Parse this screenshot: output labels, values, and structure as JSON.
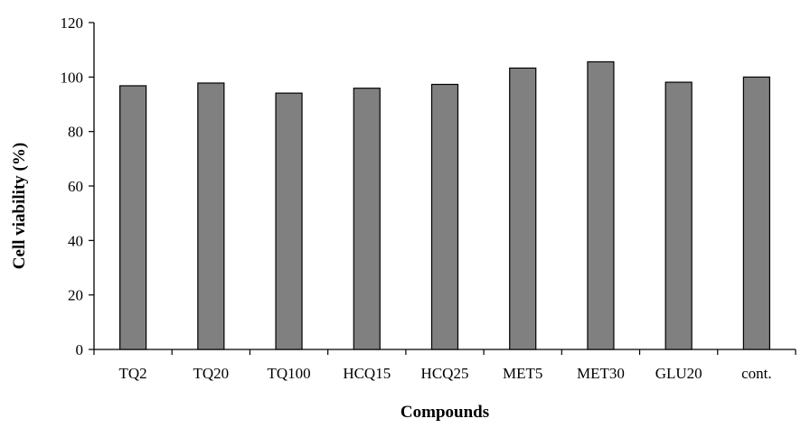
{
  "chart_data": {
    "type": "bar",
    "title": "",
    "xlabel": "Compounds",
    "ylabel": "Cell viability (%)",
    "categories": [
      "TQ2",
      "TQ20",
      "TQ100",
      "HCQ15",
      "HCQ25",
      "MET5",
      "MET30",
      "GLU20",
      "cont."
    ],
    "values": [
      96.8,
      97.8,
      94.1,
      95.9,
      97.3,
      103.3,
      105.6,
      98.1,
      100
    ],
    "ylim": [
      0,
      120
    ],
    "yticks": [
      "0",
      "20",
      "40",
      "60",
      "80",
      "100",
      "120"
    ],
    "grid": false,
    "legend": "none",
    "bar_color": "#808080",
    "bar_edge_color": "#000000"
  }
}
